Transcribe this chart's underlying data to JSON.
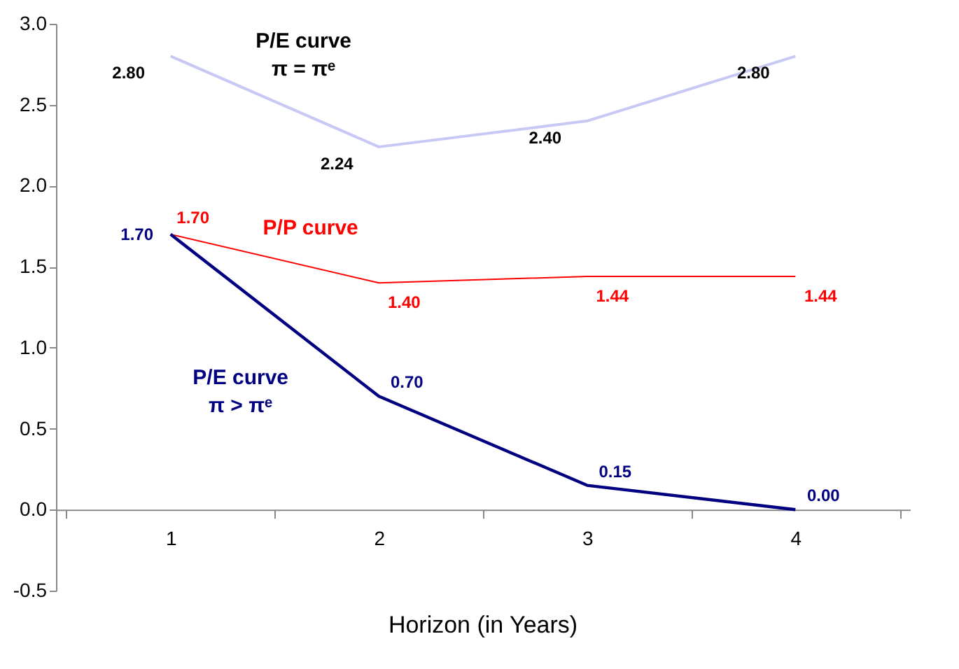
{
  "chart_data": {
    "type": "line",
    "xlabel": "Horizon (in Years)",
    "categories": [
      "1",
      "2",
      "3",
      "4"
    ],
    "series": [
      {
        "name": "P/E curve\nπ = πᵉ",
        "color": "#c8c8f4",
        "values": [
          2.8,
          2.24,
          2.4,
          2.8
        ],
        "value_labels": [
          "2.80",
          "2.24",
          "2.40",
          "2.80"
        ]
      },
      {
        "name": "P/P curve",
        "color": "#ff0000",
        "values": [
          1.7,
          1.4,
          1.44,
          1.44
        ],
        "value_labels": [
          "1.70",
          "1.40",
          "1.44",
          "1.44"
        ]
      },
      {
        "name": "P/E curve\nπ > πᵉ",
        "color": "#000080",
        "values": [
          1.7,
          0.7,
          0.15,
          0.0
        ],
        "value_labels": [
          "1.70",
          "0.70",
          "0.15",
          "0.00"
        ]
      }
    ],
    "ylim": [
      -0.5,
      3.0
    ],
    "yticks": [
      {
        "value": -0.5,
        "label": "-0.5"
      },
      {
        "value": 0,
        "label": "0.0"
      },
      0.5,
      {
        "value": 1,
        "label": "1.0"
      },
      1.5,
      {
        "value": 2,
        "label": "2.0"
      },
      2.5,
      {
        "value": 3,
        "label": "3.0"
      }
    ],
    "grid": false,
    "marker": "none",
    "line_style": "solid"
  }
}
